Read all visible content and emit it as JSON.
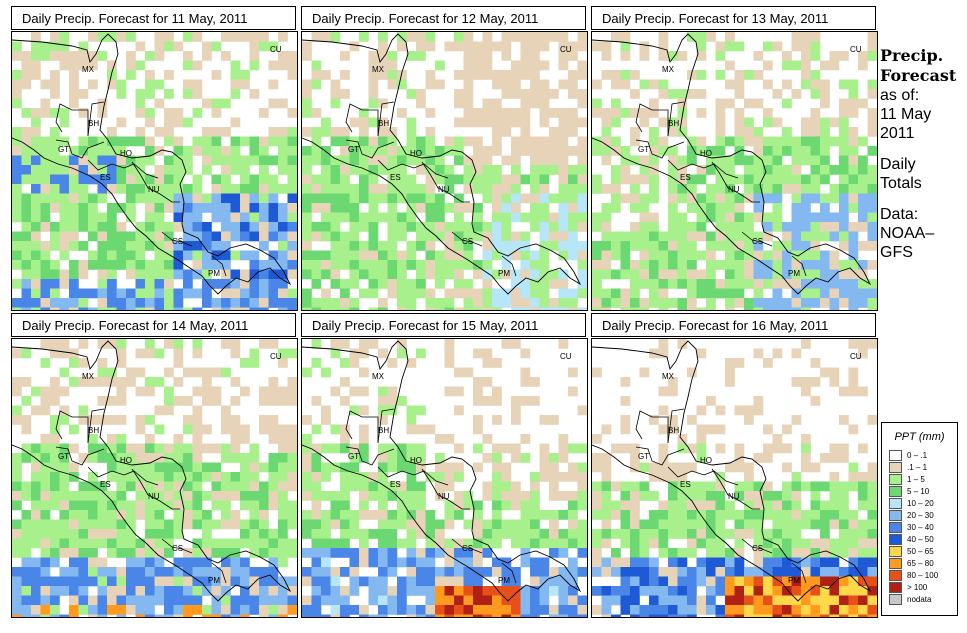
{
  "panels": [
    {
      "title": "Daily Precip. Forecast for  11 May, 2011",
      "seed": 11,
      "scenario": "d11"
    },
    {
      "title": "Daily Precip. Forecast for  12 May, 2011",
      "seed": 12,
      "scenario": "d12"
    },
    {
      "title": "Daily Precip. Forecast for  13 May, 2011",
      "seed": 13,
      "scenario": "d13"
    },
    {
      "title": "Daily Precip. Forecast for  14 May, 2011",
      "seed": 14,
      "scenario": "d14"
    },
    {
      "title": "Daily Precip. Forecast for  15 May, 2011",
      "seed": 15,
      "scenario": "d15"
    },
    {
      "title": "Daily Precip. Forecast for  16 May, 2011",
      "seed": 16,
      "scenario": "d16"
    }
  ],
  "country_labels": [
    "MX",
    "BH",
    "GT",
    "HO",
    "ES",
    "NU",
    "CS",
    "PM",
    "CU"
  ],
  "side_panel": {
    "heading_line1": "Precip.",
    "heading_line2": "Forecast",
    "asof_line1": "as of:",
    "asof_line2": "11 May",
    "asof_line3": "2011",
    "totals_line1": "Daily",
    "totals_line2": "Totals",
    "source_line1": "Data:",
    "source_line2": "NOAA–",
    "source_line3": "GFS"
  },
  "legend": {
    "title": "PPT (mm)",
    "classes": [
      {
        "label": "0 – .1",
        "color": "#ffffff"
      },
      {
        "label": ".1 – 1",
        "color": "#e6d3b8"
      },
      {
        "label": "1 – 5",
        "color": "#a8f08c"
      },
      {
        "label": "5 – 10",
        "color": "#6cd872"
      },
      {
        "label": "10 – 20",
        "color": "#b6e6f8"
      },
      {
        "label": "20 – 30",
        "color": "#84b8f0"
      },
      {
        "label": "30 – 40",
        "color": "#4a86e8"
      },
      {
        "label": "40 – 50",
        "color": "#1e5ad6"
      },
      {
        "label": "50 – 65",
        "color": "#ffd84a"
      },
      {
        "label": "65 – 80",
        "color": "#ff9a1e"
      },
      {
        "label": "80 – 100",
        "color": "#e8501a"
      },
      {
        "label": "> 100",
        "color": "#b02014"
      },
      {
        "label": "nodata",
        "color": "#c8c8c8"
      }
    ]
  }
}
